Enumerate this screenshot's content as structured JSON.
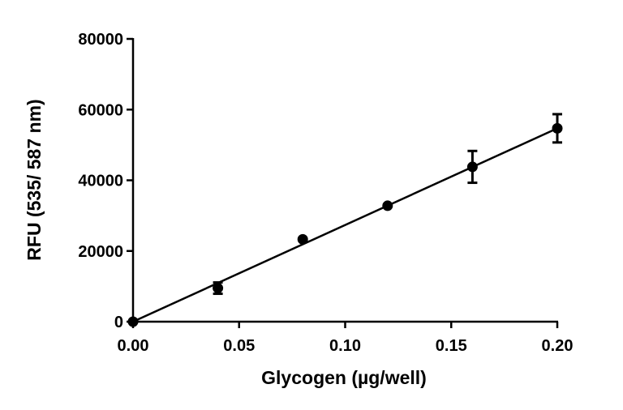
{
  "chart_data": {
    "type": "scatter",
    "title": "",
    "xlabel": "Glycogen (µg/well)",
    "ylabel": "RFU (535/ 587 nm)",
    "xlim": [
      0.0,
      0.2
    ],
    "ylim": [
      0,
      80000
    ],
    "x_ticks": [
      "0.00",
      "0.05",
      "0.10",
      "0.15",
      "0.20"
    ],
    "y_ticks": [
      "0",
      "20000",
      "40000",
      "60000",
      "80000"
    ],
    "grid": false,
    "legend": "none",
    "series": [
      {
        "x": [
          0.0,
          0.04,
          0.08,
          0.12,
          0.16,
          0.2
        ],
        "y": [
          0,
          9500,
          23300,
          32800,
          43800,
          54700
        ],
        "error": [
          0,
          1600,
          0,
          0,
          4500,
          4000
        ]
      }
    ],
    "fit_line": {
      "x": [
        0.0,
        0.2
      ],
      "y": [
        0,
        54700
      ]
    },
    "colors": {
      "marker": "#000000",
      "line": "#000000",
      "axis": "#000000"
    }
  }
}
